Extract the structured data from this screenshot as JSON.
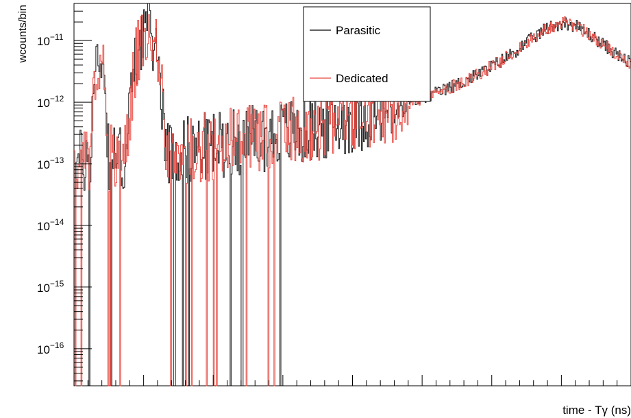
{
  "chart_data": {
    "type": "line",
    "title": "",
    "xlabel": "time - Tγ (ns)",
    "ylabel": "wcounts/bin",
    "yscale": "log",
    "ylim": [
      2.5e-17,
      4e-11
    ],
    "yticks": [
      {
        "value": 1e-16,
        "base": "10",
        "exp": "−16"
      },
      {
        "value": 1e-15,
        "base": "10",
        "exp": "−15"
      },
      {
        "value": 1e-14,
        "base": "10",
        "exp": "−14"
      },
      {
        "value": 1e-13,
        "base": "10",
        "exp": "−13"
      },
      {
        "value": 1e-12,
        "base": "10",
        "exp": "−12"
      },
      {
        "value": 1e-11,
        "base": "10",
        "exp": "−11"
      }
    ],
    "legend_position": "top-center",
    "series": [
      {
        "name": "Parasitic",
        "color": "#000000",
        "peaks": [
          {
            "x": 0.045,
            "height": 6.5e-12,
            "width": 0.006
          },
          {
            "x": 0.13,
            "height": 1.7e-11,
            "width": 0.012
          },
          {
            "x": 0.215,
            "height": 6e-14,
            "width": 0.005
          },
          {
            "x": 0.88,
            "height": 1.9e-11,
            "width": 0.05
          }
        ],
        "baseline": 1.3e-14
      },
      {
        "name": "Dedicated",
        "color": "#e8433b",
        "peaks": [
          {
            "x": 0.045,
            "height": 6e-12,
            "width": 0.006
          },
          {
            "x": 0.13,
            "height": 1.6e-11,
            "width": 0.012
          },
          {
            "x": 0.215,
            "height": 1e-13,
            "width": 0.005
          },
          {
            "x": 0.88,
            "height": 1.9e-11,
            "width": 0.05
          }
        ],
        "baseline": 1.8e-14
      }
    ]
  }
}
